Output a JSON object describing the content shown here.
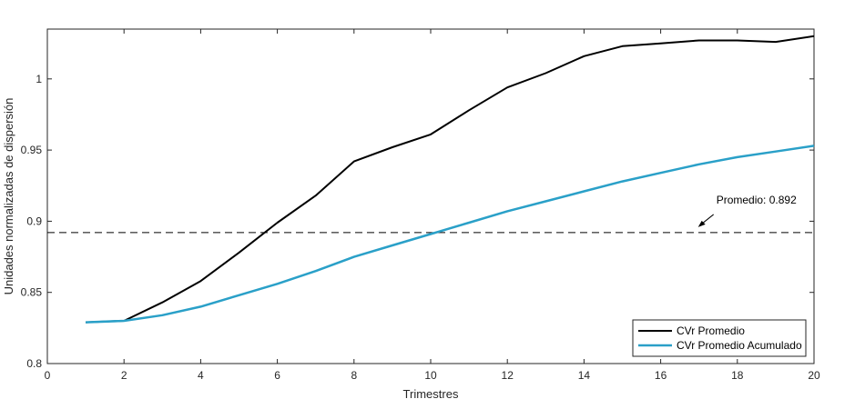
{
  "chart_data": {
    "type": "line",
    "xlabel": "Trimestres",
    "ylabel": "Unidades normalizadas de dispersión",
    "xlim": [
      0,
      20
    ],
    "ylim": [
      0.8,
      1.035
    ],
    "xticks": [
      "0",
      "2",
      "4",
      "6",
      "8",
      "10",
      "12",
      "14",
      "16",
      "18",
      "20"
    ],
    "yticks": [
      "0.8",
      "0.85",
      "0.9",
      "0.95",
      "1"
    ],
    "grid": false,
    "legend_position": "bottom-right",
    "x": [
      1,
      2,
      3,
      4,
      5,
      6,
      7,
      8,
      9,
      10,
      11,
      12,
      13,
      14,
      15,
      16,
      17,
      18,
      19,
      20
    ],
    "series": [
      {
        "name": "CVr Promedio",
        "color": "#000000",
        "values": [
          0.829,
          0.83,
          0.843,
          0.858,
          0.878,
          0.899,
          0.918,
          0.942,
          0.952,
          0.961,
          0.978,
          0.994,
          1.004,
          1.016,
          1.023,
          1.025,
          1.027,
          1.027,
          1.026,
          1.03
        ]
      },
      {
        "name": "CVr Promedio Acumulado",
        "color": "#2aa0c8",
        "values": [
          0.829,
          0.83,
          0.834,
          0.84,
          0.848,
          0.856,
          0.865,
          0.875,
          0.883,
          0.891,
          0.899,
          0.907,
          0.914,
          0.921,
          0.928,
          0.934,
          0.94,
          0.945,
          0.949,
          0.953
        ]
      }
    ],
    "reference_line": {
      "y": 0.892,
      "style": "dashed",
      "color": "#000000",
      "annotation": "Promedio: 0.892",
      "annotation_x": 17
    }
  }
}
